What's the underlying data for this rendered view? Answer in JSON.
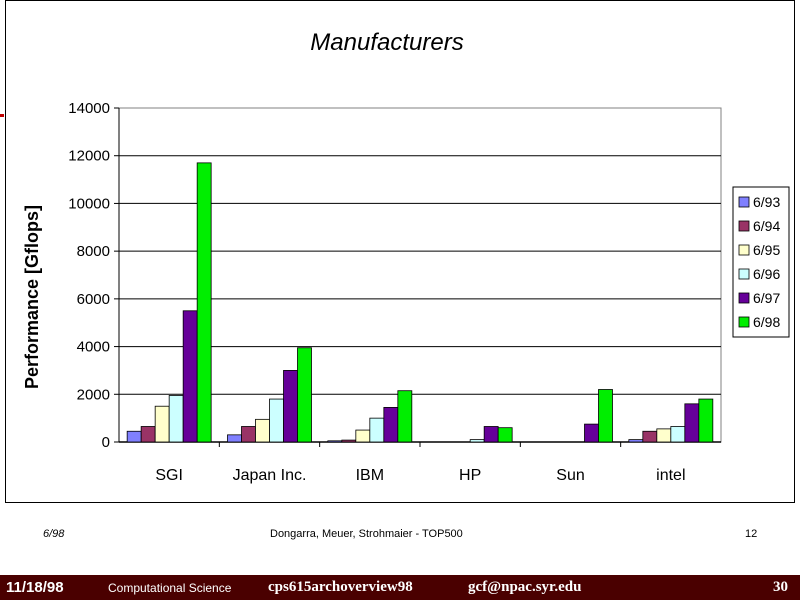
{
  "chart_data": {
    "type": "bar",
    "title": "Manufacturers",
    "ylabel": "Performance [Gflops]",
    "xlabel": "",
    "ylim": [
      0,
      14000
    ],
    "yticks": [
      "0",
      "2000",
      "4000",
      "6000",
      "8000",
      "10000",
      "12000",
      "14000"
    ],
    "grid": true,
    "legend_position": "right",
    "categories": [
      "SGI",
      "Japan Inc.",
      "IBM",
      "HP",
      "Sun",
      "intel"
    ],
    "series": [
      {
        "name": "6/93",
        "color": "#8080ff",
        "values": [
          450,
          300,
          50,
          0,
          0,
          100
        ]
      },
      {
        "name": "6/94",
        "color": "#993366",
        "values": [
          650,
          650,
          80,
          0,
          0,
          450
        ]
      },
      {
        "name": "6/95",
        "color": "#ffffcc",
        "values": [
          1500,
          950,
          500,
          0,
          0,
          550
        ]
      },
      {
        "name": "6/96",
        "color": "#ccffff",
        "values": [
          1950,
          1800,
          1000,
          100,
          0,
          650
        ]
      },
      {
        "name": "6/97",
        "color": "#660099",
        "values": [
          5500,
          3000,
          1450,
          650,
          750,
          1600
        ]
      },
      {
        "name": "6/98",
        "color": "#00ee00",
        "values": [
          11700,
          3950,
          2150,
          600,
          2200,
          1800
        ]
      }
    ]
  },
  "footer": {
    "left": "6/98",
    "center": "Dongarra, Meuer, Strohmaier - TOP500",
    "right": "12"
  },
  "bottom_bar": {
    "date": "11/18/98",
    "course": "Computational Science",
    "file": "cps615archoverview98",
    "email": "gcf@npac.syr.edu",
    "page": "30",
    "color": "#4a0000"
  }
}
